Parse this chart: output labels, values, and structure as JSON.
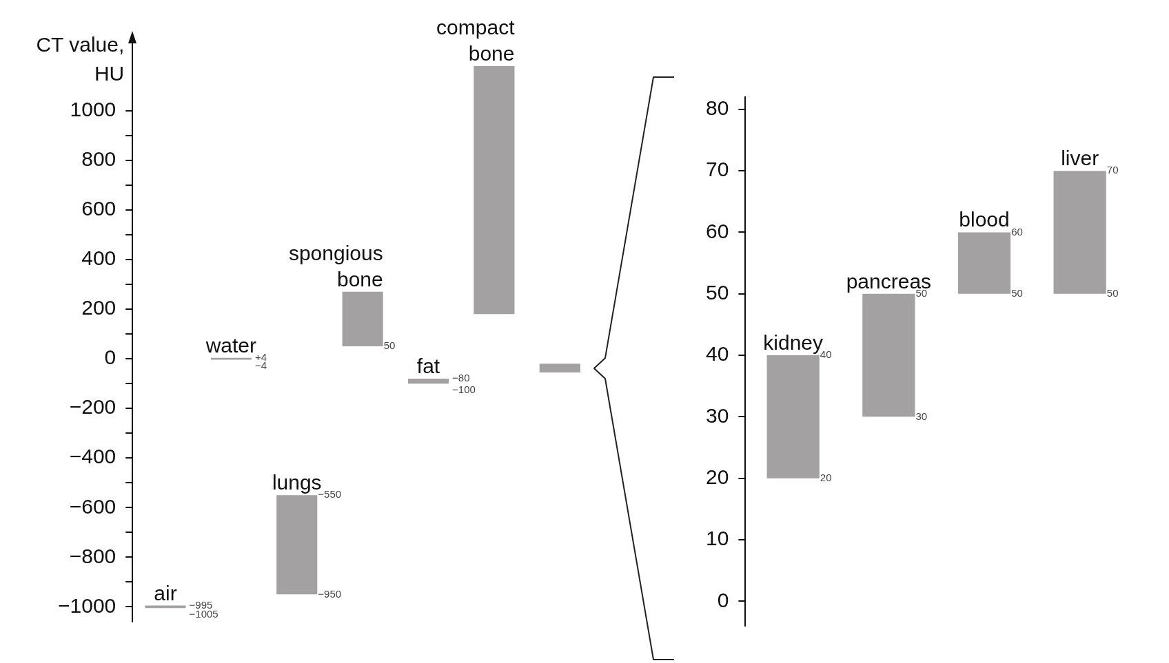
{
  "chart_data": [
    {
      "type": "bar",
      "ylabel": "CT value, HU",
      "categories": [
        "air",
        "water",
        "lungs",
        "spongious bone",
        "fat",
        "compact bone",
        null
      ],
      "base": [
        -1005,
        -4,
        -950,
        50,
        -100,
        180,
        -55
      ],
      "values": [
        10,
        8,
        400,
        220,
        20,
        1000,
        35
      ],
      "color": "#a3a1a2",
      "tick_labels": "y",
      "ylim": [
        -1060,
        1280
      ],
      "yticks": [
        -1000,
        {
          "value": -900,
          "label": null
        },
        -800,
        {
          "value": -700,
          "label": null
        },
        -600,
        {
          "value": -500,
          "label": null
        },
        -400,
        {
          "value": -300,
          "label": null
        },
        -200,
        {
          "value": -100,
          "label": null
        },
        0,
        {
          "value": 100,
          "label": null
        },
        200,
        {
          "value": 300,
          "label": null
        },
        400,
        {
          "value": 500,
          "label": null
        },
        600,
        {
          "value": 700,
          "label": null
        },
        800,
        {
          "value": 900,
          "label": null
        },
        1000
      ],
      "annotations": [
        {
          "text": "−995",
          "x": "air",
          "y": -995
        },
        {
          "text": "−1005",
          "x": "air",
          "y": -1005
        },
        {
          "text": "+4",
          "x": "water",
          "y": 4
        },
        {
          "text": "−4",
          "x": "water",
          "y": -4
        },
        {
          "text": "−550",
          "x": "lungs",
          "y": -550
        },
        {
          "text": "−950",
          "x": "lungs",
          "y": -950
        },
        {
          "text": "50",
          "x": "spongious bone",
          "y": 50
        },
        {
          "text": "−80",
          "x": "fat",
          "y": -80
        },
        {
          "text": "−100",
          "x": "fat",
          "y": -100
        }
      ]
    },
    {
      "type": "bar",
      "categories": [
        "kidney",
        "pancreas",
        "blood",
        "liver"
      ],
      "base": [
        20,
        30,
        50,
        50
      ],
      "values": [
        20,
        20,
        10,
        20
      ],
      "color": "#a3a1a2",
      "tick_labels": "y",
      "ylim": [
        -4,
        82
      ],
      "yticks": [
        0,
        10,
        20,
        30,
        40,
        50,
        60,
        70,
        80
      ],
      "annotations": [
        {
          "text": "40",
          "x": "kidney",
          "y": 40
        },
        {
          "text": "20",
          "x": "kidney",
          "y": 20
        },
        {
          "text": "50",
          "x": "pancreas",
          "y": 50
        },
        {
          "text": "30",
          "x": "pancreas",
          "y": 30
        },
        {
          "text": "60",
          "x": "blood",
          "y": 60
        },
        {
          "text": "50",
          "x": "blood",
          "y": 50
        },
        {
          "text": "70",
          "x": "liver",
          "y": 70
        },
        {
          "text": "50",
          "x": "liver",
          "y": 50
        }
      ]
    }
  ]
}
